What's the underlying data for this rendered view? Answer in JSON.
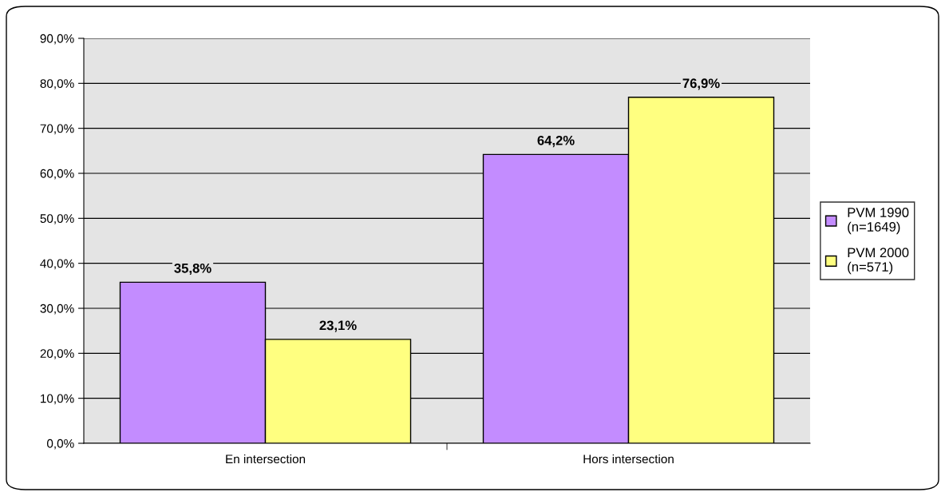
{
  "chart_data": {
    "type": "bar",
    "categories": [
      "En intersection",
      "Hors intersection"
    ],
    "series": [
      {
        "name": "PVM 1990\n(n=1649)",
        "color": "#c38cff",
        "values": [
          35.8,
          64.2
        ],
        "value_labels": [
          "35,8%",
          "64,2%"
        ]
      },
      {
        "name": "PVM 2000\n(n=571)",
        "color": "#ffff80",
        "values": [
          23.1,
          76.9
        ],
        "value_labels": [
          "23,1%",
          "76,9%"
        ]
      }
    ],
    "ylim": [
      0,
      90
    ],
    "yticks": [
      {
        "value": 0,
        "label": "0,0%"
      },
      {
        "value": 10,
        "label": "10,0%"
      },
      {
        "value": 20,
        "label": "20,0%"
      },
      {
        "value": 30,
        "label": "30,0%"
      },
      {
        "value": 40,
        "label": "40,0%"
      },
      {
        "value": 50,
        "label": "50,0%"
      },
      {
        "value": 60,
        "label": "60,0%"
      },
      {
        "value": 70,
        "label": "70,0%"
      },
      {
        "value": 80,
        "label": "80,0%"
      },
      {
        "value": 90,
        "label": "90,0%"
      }
    ],
    "grid": "y",
    "legend": "right"
  }
}
